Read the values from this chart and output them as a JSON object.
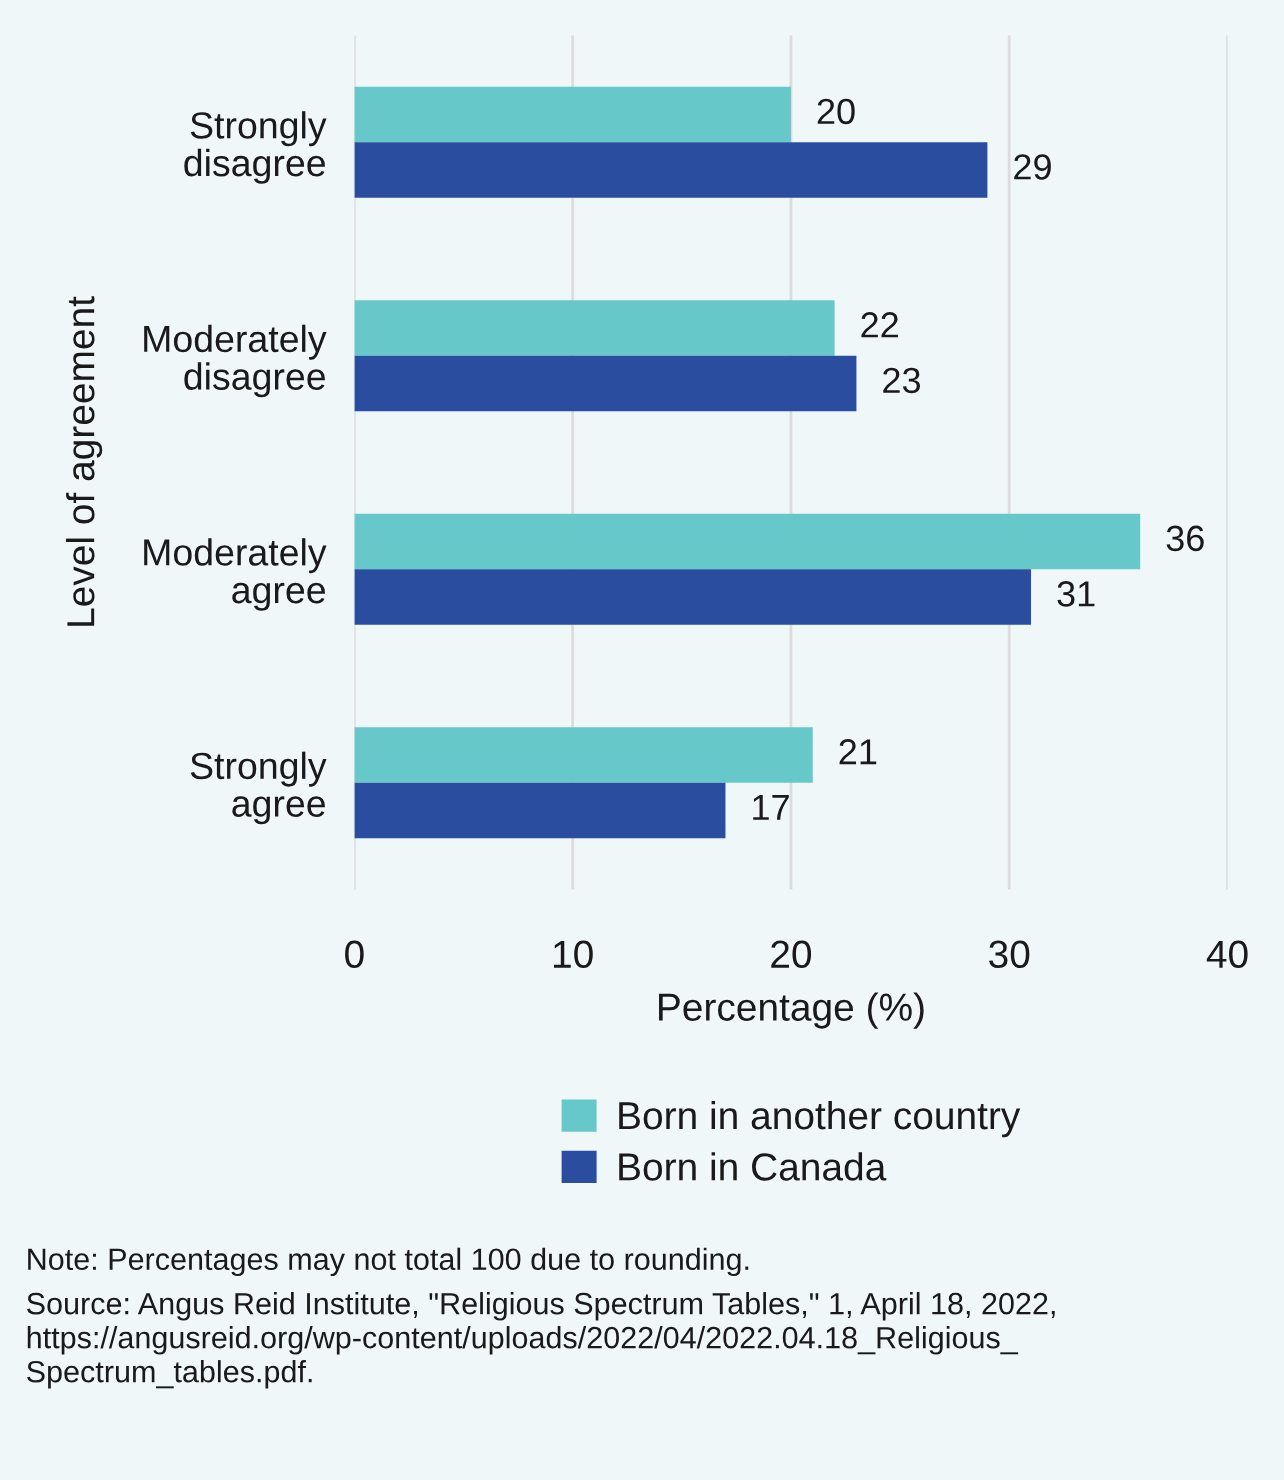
{
  "chart_data": {
    "type": "bar",
    "orientation": "horizontal",
    "ylabel": "Level of agreement",
    "xlabel": "Percentage (%)",
    "categories": [
      "Strongly\ndisagree",
      "Moderately\ndisagree",
      "Moderately\nagree",
      "Strongly\nagree"
    ],
    "series": [
      {
        "name": "Born in another country",
        "color": "#66c8c9",
        "values": [
          20,
          22,
          36,
          21
        ]
      },
      {
        "name": "Born in Canada",
        "color": "#2b4da0",
        "values": [
          29,
          23,
          31,
          17
        ]
      }
    ],
    "xlim": [
      0,
      40
    ],
    "xticks": [
      0,
      10,
      20,
      30,
      40
    ],
    "grid": "x",
    "legend": "bottom",
    "data_labels": true,
    "annotations": [
      "Note: Percentages may not total 100 due to rounding.",
      "Source: Angus Reid Institute, \"Religious Spectrum Tables,\" 1, April 18, 2022,\nhttps://angusreid.org/wp-content/uploads/2022/04/2022.04.18_Religious_\nSpectrum_tables.pdf."
    ]
  }
}
